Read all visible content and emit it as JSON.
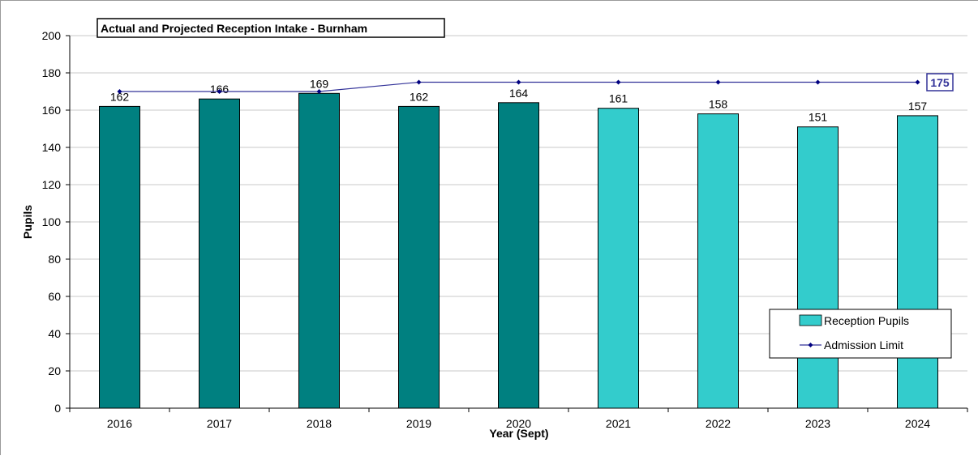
{
  "chart_data": {
    "type": "bar",
    "title": "Actual and Projected Reception Intake - Burnham",
    "xlabel": "Year (Sept)",
    "ylabel": "Pupils",
    "ylim": [
      0,
      200
    ],
    "yticks": [
      "0",
      "20",
      "40",
      "60",
      "80",
      "100",
      "120",
      "140",
      "160",
      "180",
      "200"
    ],
    "grid": true,
    "legend_position": "bottom-right",
    "categories": [
      "2016",
      "2017",
      "2018",
      "2019",
      "2020",
      "2021",
      "2022",
      "2023",
      "2024"
    ],
    "series": [
      {
        "name": "Reception Pupils",
        "type": "bar",
        "values": [
          162,
          166,
          169,
          162,
          164,
          161,
          158,
          151,
          157
        ],
        "labels": [
          "162",
          "166",
          "169",
          "162",
          "164",
          "161",
          "158",
          "151",
          "157"
        ],
        "actual_color": "#008080",
        "projected_color": "#33CCCC",
        "actual_count": 5
      },
      {
        "name": "Admission Limit",
        "type": "line",
        "values": [
          170,
          170,
          170,
          175,
          175,
          175,
          175,
          175,
          175
        ],
        "color": "#333399",
        "end_label": "175"
      }
    ]
  }
}
